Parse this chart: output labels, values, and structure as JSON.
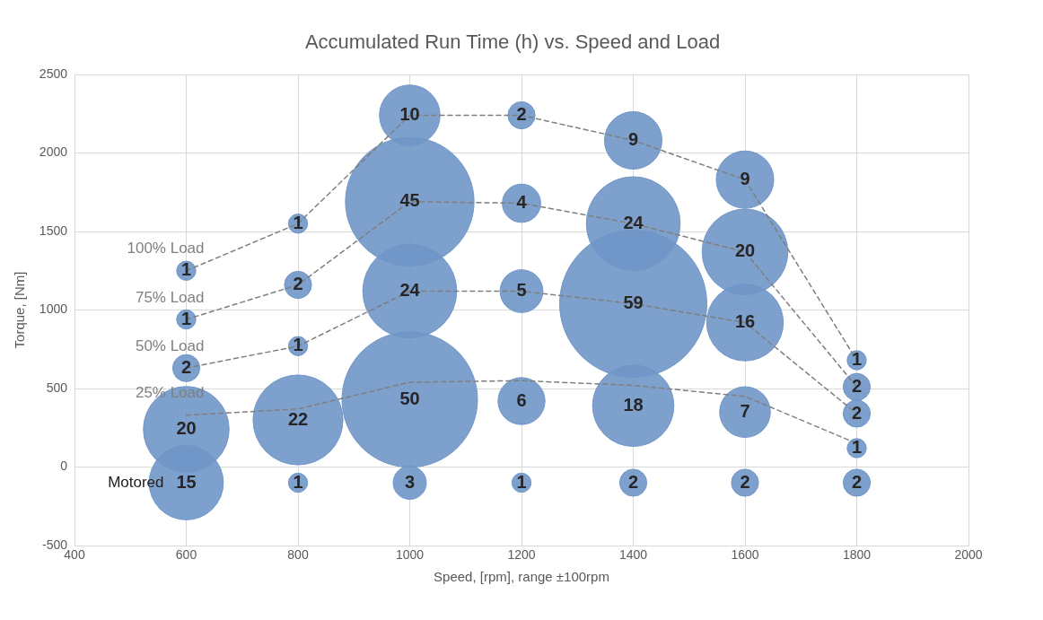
{
  "chart_data": {
    "type": "bubble",
    "title": "Accumulated Run Time (h) vs. Speed and Load",
    "xlabel": "Speed, [rpm], range ±100rpm",
    "ylabel": "Torque, [Nm]",
    "xlim": [
      400,
      2000
    ],
    "xticks": [
      400,
      600,
      800,
      1000,
      1200,
      1400,
      1600,
      1800,
      2000
    ],
    "ylim": [
      -500,
      2500
    ],
    "yticks": [
      -500,
      0,
      500,
      1000,
      1500,
      2000,
      2500
    ],
    "grid": true,
    "legend": false,
    "annotations": [
      {
        "text": "Motored",
        "x": 600,
        "y": -100
      }
    ],
    "series": [
      {
        "type": "line",
        "name": "100% Load",
        "color": "#7f7f7f",
        "line_style": "dashed",
        "x": [
          600,
          800,
          1000,
          1200,
          1400,
          1600,
          1800
        ],
        "values": [
          1250,
          1550,
          2240,
          2240,
          2080,
          1830,
          680
        ]
      },
      {
        "type": "line",
        "name": "75% Load",
        "color": "#7f7f7f",
        "line_style": "dashed",
        "x": [
          600,
          800,
          1000,
          1200,
          1400,
          1600,
          1800
        ],
        "values": [
          940,
          1160,
          1690,
          1680,
          1550,
          1370,
          510
        ]
      },
      {
        "type": "line",
        "name": "50% Load",
        "color": "#7f7f7f",
        "line_style": "dashed",
        "x": [
          600,
          800,
          1000,
          1200,
          1400,
          1600,
          1800
        ],
        "values": [
          630,
          770,
          1120,
          1120,
          1040,
          920,
          340
        ]
      },
      {
        "type": "line",
        "name": "25% Load",
        "color": "#7f7f7f",
        "line_style": "dashed",
        "x": [
          600,
          800,
          1000,
          1200,
          1400,
          1600,
          1800
        ],
        "values": [
          330,
          370,
          540,
          550,
          520,
          450,
          150
        ]
      },
      {
        "color": "#7096c8",
        "x": [
          600,
          600,
          600,
          600,
          600,
          800,
          800,
          800,
          800,
          800,
          1000,
          1000,
          1000,
          1000,
          1000,
          1200,
          1200,
          1200,
          1200,
          1200,
          1400,
          1400,
          1400,
          1400,
          1400,
          1600,
          1600,
          1600,
          1600,
          1600,
          1800,
          1800,
          1800,
          1800,
          1800
        ],
        "values": [
          1250,
          940,
          630,
          240,
          -100,
          1550,
          1160,
          770,
          300,
          -100,
          2240,
          1690,
          1120,
          430,
          -100,
          2240,
          1680,
          1120,
          420,
          -100,
          2080,
          1550,
          1040,
          390,
          -100,
          1830,
          1370,
          920,
          350,
          -100,
          680,
          510,
          340,
          120,
          -100
        ],
        "sizes": [
          1,
          1,
          2,
          20,
          15,
          1,
          2,
          1,
          22,
          1,
          10,
          45,
          24,
          50,
          3,
          2,
          4,
          5,
          6,
          1,
          9,
          24,
          59,
          18,
          2,
          9,
          20,
          16,
          7,
          2,
          1,
          2,
          2,
          1,
          2
        ],
        "value_labels": [
          "1",
          "1",
          "2",
          "20",
          "15",
          "1",
          "2",
          "1",
          "22",
          "1",
          "10",
          "45",
          "24",
          "50",
          "3",
          "2",
          "4",
          "5",
          "6",
          "1",
          "9",
          "24",
          "59",
          "18",
          "2",
          "9",
          "20",
          "16",
          "7",
          "2",
          "1",
          "2",
          "2",
          "1",
          "2"
        ]
      }
    ]
  }
}
